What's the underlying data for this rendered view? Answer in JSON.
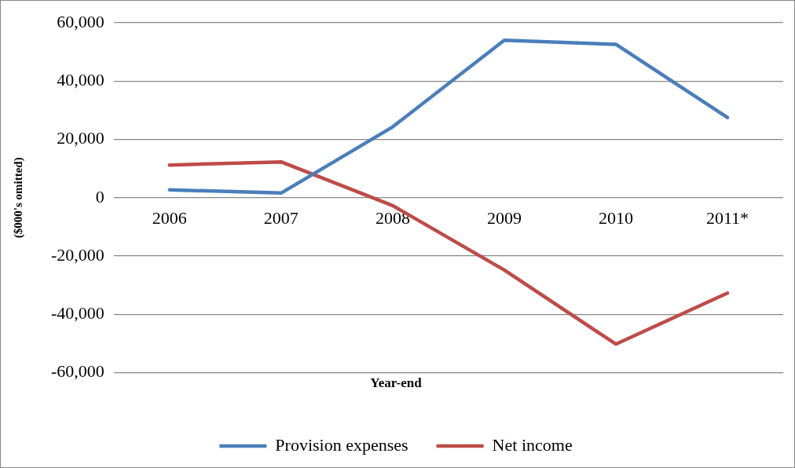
{
  "chart_data": {
    "type": "line",
    "xlabel": "Year-end",
    "ylabel": "($000's omitted)",
    "categories": [
      "2006",
      "2007",
      "2008",
      "2009",
      "2010",
      "2011*"
    ],
    "series": [
      {
        "name": "Provision expenses",
        "color": "#4a7ebb",
        "values": [
          2700,
          1600,
          24300,
          54000,
          52600,
          27500
        ]
      },
      {
        "name": "Net income",
        "color": "#be4b48",
        "values": [
          11200,
          12300,
          -2700,
          -24800,
          -50200,
          -32700
        ]
      }
    ],
    "ylim": [
      -60000,
      60000
    ],
    "yticks": [
      {
        "value": -60000,
        "label": "-60,000"
      },
      {
        "value": -40000,
        "label": "-40,000"
      },
      {
        "value": -20000,
        "label": "-20,000"
      },
      0,
      {
        "value": 20000,
        "label": "20,000"
      },
      {
        "value": 40000,
        "label": "40,000"
      },
      {
        "value": 60000,
        "label": "60,000"
      }
    ],
    "grid": "y",
    "legend": "bottom",
    "marker": "none",
    "line_style": "solid"
  }
}
